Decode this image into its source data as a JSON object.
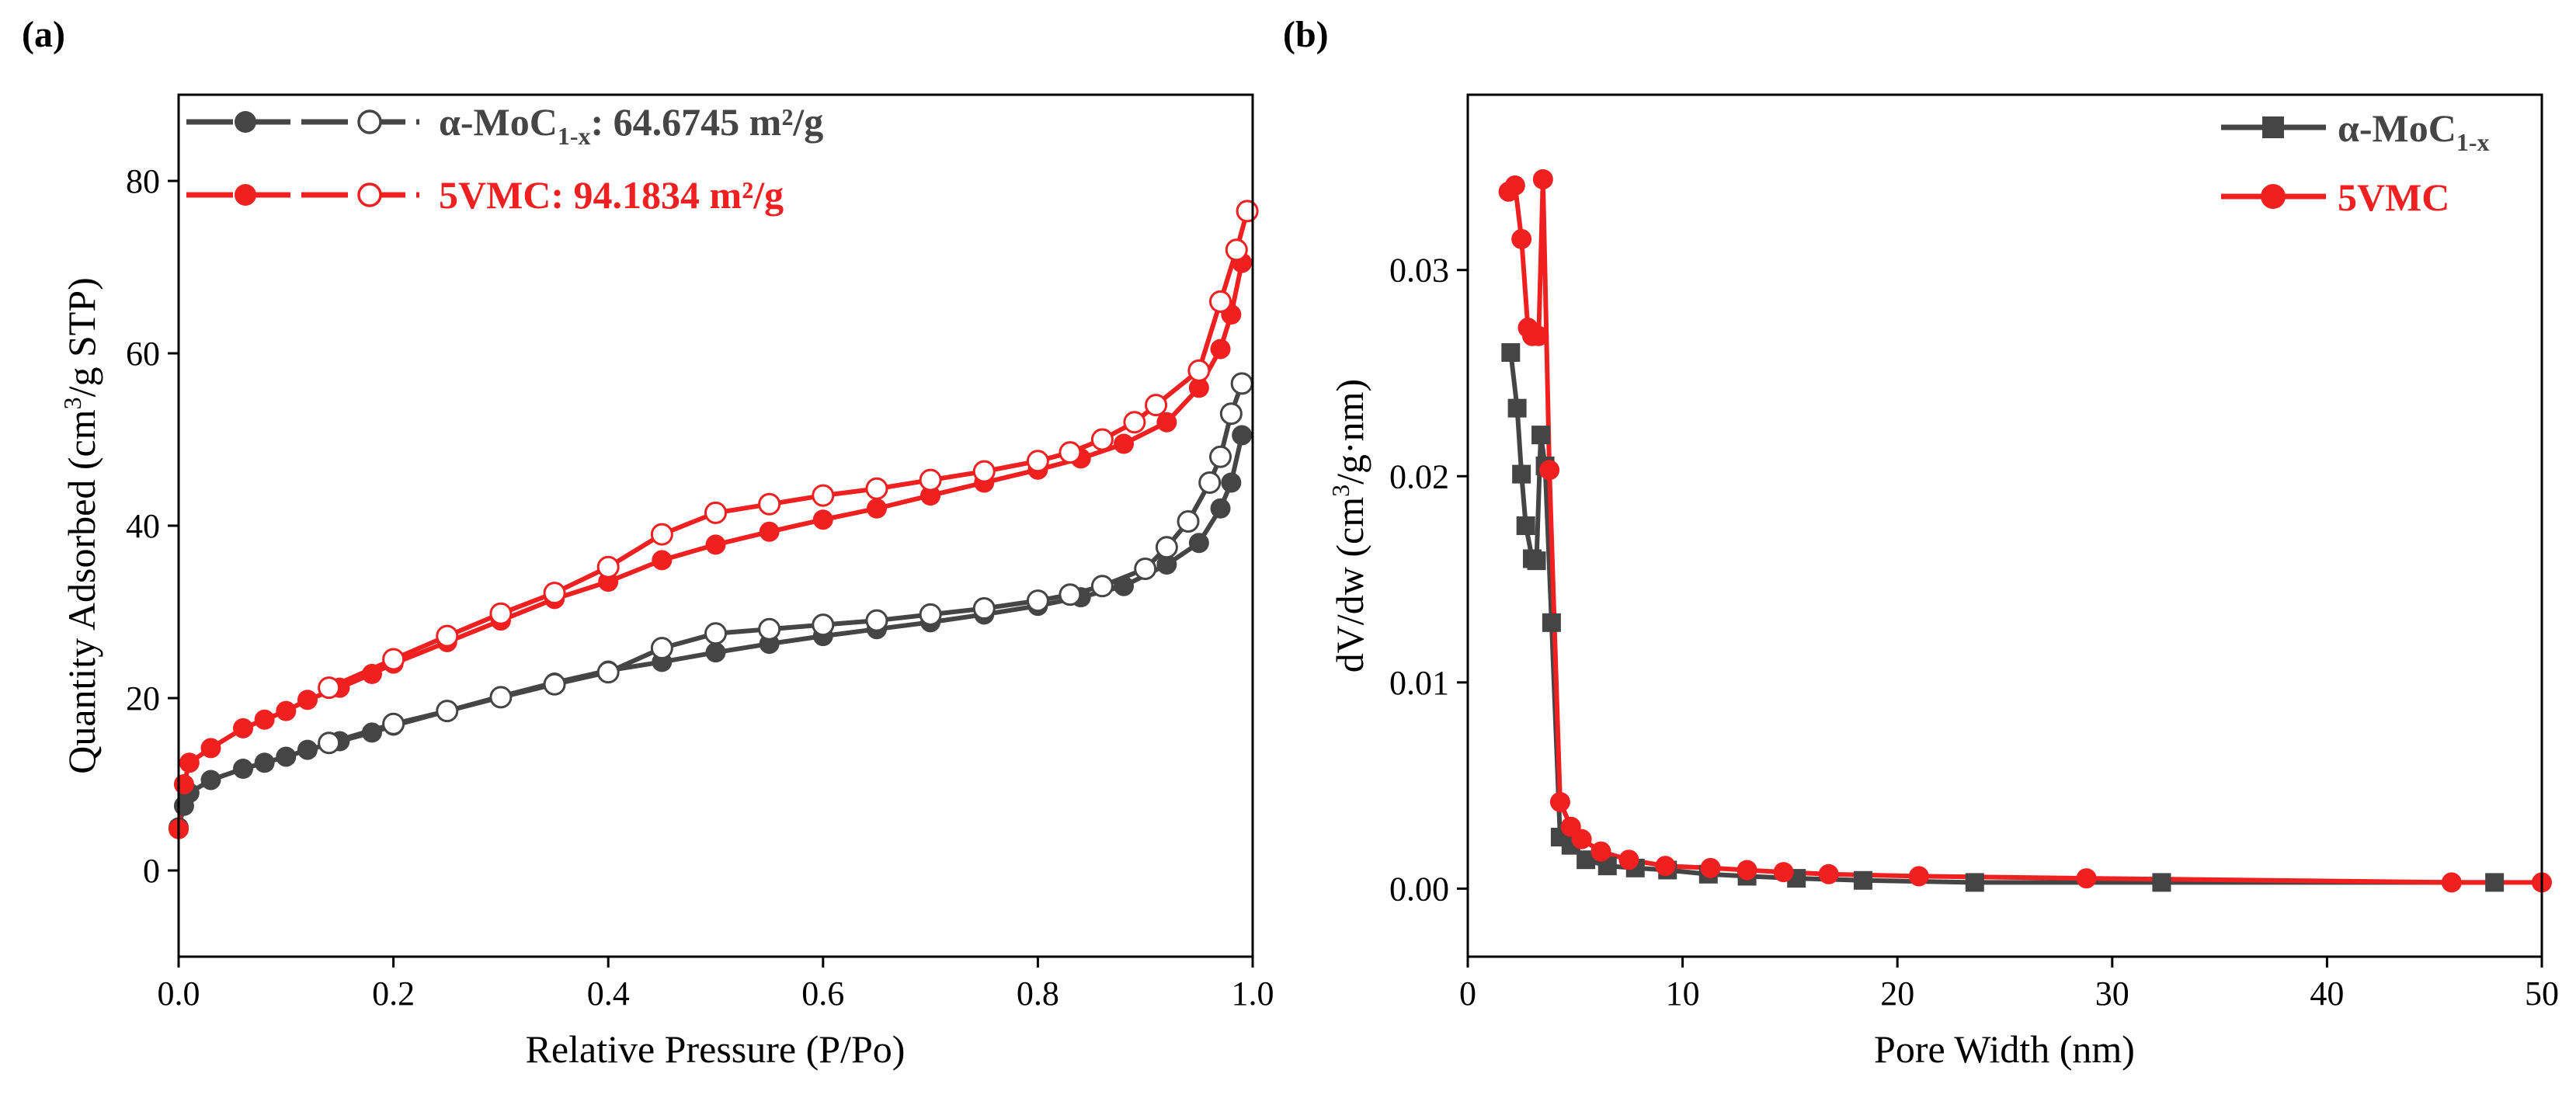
{
  "colors": {
    "black_series": "#454545",
    "red_series": "#f02020",
    "axis": "#000000"
  },
  "chart_data": [
    {
      "panel": "(a)",
      "type": "line",
      "xlabel": "Relative Pressure (P/Po)",
      "ylabel_parts": [
        "Quantity Adsorbed (cm",
        "3",
        "/g STP)"
      ],
      "xlim": [
        0.0,
        1.0
      ],
      "ylim": [
        -10,
        90
      ],
      "xticks": [
        0.0,
        0.2,
        0.4,
        0.6,
        0.8,
        1.0
      ],
      "xtick_labels": [
        "0.0",
        "0.2",
        "0.4",
        "0.6",
        "0.8",
        "1.0"
      ],
      "yticks": [
        0,
        20,
        40,
        60,
        80
      ],
      "ytick_labels": [
        "0",
        "20",
        "40",
        "60",
        "80"
      ],
      "legend": [
        {
          "name_parts": [
            "α-MoC",
            "1-x",
            ": 64.6745 m²/g"
          ],
          "color": "#454545"
        },
        {
          "name_parts": [
            "5VMC: 94.1834 m²/g",
            "",
            ""
          ],
          "color": "#f02020"
        }
      ],
      "series": [
        {
          "name": "α-MoC1-x adsorption",
          "color": "#454545",
          "marker": "filled-circle",
          "x": [
            0.0,
            0.005,
            0.01,
            0.03,
            0.06,
            0.08,
            0.1,
            0.12,
            0.15,
            0.18,
            0.2,
            0.25,
            0.3,
            0.35,
            0.4,
            0.45,
            0.5,
            0.55,
            0.6,
            0.65,
            0.7,
            0.75,
            0.8,
            0.84,
            0.88,
            0.92,
            0.95,
            0.97,
            0.98,
            0.99
          ],
          "y": [
            5.0,
            7.5,
            9.0,
            10.5,
            11.8,
            12.5,
            13.2,
            14.0,
            15.0,
            16.0,
            16.8,
            18.5,
            20.2,
            21.8,
            23.2,
            24.2,
            25.3,
            26.3,
            27.2,
            28.0,
            28.8,
            29.7,
            30.7,
            31.7,
            33.0,
            35.5,
            38.0,
            42.0,
            45.0,
            50.5
          ]
        },
        {
          "name": "α-MoC1-x desorption",
          "color": "#454545",
          "marker": "open-circle",
          "x": [
            0.99,
            0.98,
            0.97,
            0.96,
            0.94,
            0.92,
            0.9,
            0.86,
            0.83,
            0.8,
            0.75,
            0.7,
            0.65,
            0.6,
            0.55,
            0.5,
            0.45,
            0.4,
            0.35,
            0.3,
            0.25,
            0.2,
            0.14
          ],
          "y": [
            56.5,
            53.0,
            48.0,
            45.0,
            40.5,
            37.5,
            35.0,
            33.0,
            32.0,
            31.3,
            30.4,
            29.7,
            29.0,
            28.5,
            28.0,
            27.5,
            25.8,
            23.0,
            21.6,
            20.1,
            18.5,
            17.0,
            14.8
          ]
        },
        {
          "name": "5VMC adsorption",
          "color": "#f02020",
          "marker": "filled-circle",
          "x": [
            0.0,
            0.005,
            0.01,
            0.03,
            0.06,
            0.08,
            0.1,
            0.12,
            0.15,
            0.18,
            0.2,
            0.25,
            0.3,
            0.35,
            0.4,
            0.45,
            0.5,
            0.55,
            0.6,
            0.65,
            0.7,
            0.75,
            0.8,
            0.84,
            0.88,
            0.92,
            0.95,
            0.97,
            0.98,
            0.99
          ],
          "y": [
            4.8,
            10.0,
            12.5,
            14.2,
            16.5,
            17.5,
            18.5,
            19.8,
            21.2,
            22.8,
            24.0,
            26.5,
            29.0,
            31.5,
            33.5,
            36.0,
            37.8,
            39.3,
            40.7,
            42.0,
            43.5,
            45.0,
            46.5,
            47.8,
            49.5,
            52.0,
            56.0,
            60.5,
            64.5,
            70.5
          ]
        },
        {
          "name": "5VMC desorption",
          "color": "#f02020",
          "marker": "open-circle",
          "x": [
            0.995,
            0.985,
            0.97,
            0.95,
            0.91,
            0.89,
            0.86,
            0.83,
            0.8,
            0.75,
            0.7,
            0.65,
            0.6,
            0.55,
            0.5,
            0.45,
            0.4,
            0.35,
            0.3,
            0.25,
            0.2,
            0.14
          ],
          "y": [
            76.5,
            72.0,
            66.0,
            58.0,
            54.0,
            52.0,
            50.0,
            48.5,
            47.5,
            46.3,
            45.3,
            44.3,
            43.5,
            42.5,
            41.5,
            39.0,
            35.2,
            32.2,
            29.8,
            27.2,
            24.5,
            21.2
          ]
        }
      ]
    },
    {
      "panel": "(b)",
      "type": "line",
      "xlabel": "Pore Width (nm)",
      "ylabel_parts": [
        "dV/dw (cm",
        "3",
        "/g·nm)"
      ],
      "xlim": [
        0,
        50
      ],
      "ylim": [
        -0.0033,
        0.0385
      ],
      "xticks": [
        0,
        10,
        20,
        30,
        40,
        50
      ],
      "xtick_labels": [
        "0",
        "10",
        "20",
        "30",
        "40",
        "50"
      ],
      "yticks": [
        0.0,
        0.01,
        0.02,
        0.03
      ],
      "ytick_labels": [
        "0.00",
        "0.01",
        "0.02",
        "0.03"
      ],
      "legend": [
        {
          "name_parts": [
            "α-MoC",
            "1-x",
            ""
          ],
          "color": "#454545"
        },
        {
          "name_parts": [
            "5VMC",
            "",
            ""
          ],
          "color": "#f02020"
        }
      ],
      "series": [
        {
          "name": "α-MoC1-x",
          "color": "#454545",
          "marker": "filled-square",
          "x": [
            2.0,
            2.3,
            2.5,
            2.7,
            3.0,
            3.2,
            3.4,
            3.6,
            3.9,
            4.3,
            4.8,
            5.5,
            6.5,
            7.8,
            9.3,
            11.2,
            13.0,
            15.3,
            18.4,
            23.6,
            32.3,
            47.8
          ],
          "y": [
            0.026,
            0.0233,
            0.0201,
            0.0176,
            0.016,
            0.0159,
            0.022,
            0.0205,
            0.0129,
            0.0025,
            0.0021,
            0.0014,
            0.0011,
            0.001,
            0.0009,
            0.0007,
            0.0006,
            0.0005,
            0.0004,
            0.0003,
            0.0003,
            0.0003
          ]
        },
        {
          "name": "5VMC",
          "color": "#f02020",
          "marker": "filled-circle",
          "x": [
            1.9,
            2.2,
            2.5,
            2.8,
            3.0,
            3.3,
            3.5,
            3.8,
            4.3,
            4.8,
            5.3,
            6.2,
            7.5,
            9.2,
            11.3,
            13.0,
            14.7,
            16.8,
            21.0,
            28.8,
            45.8,
            50.0
          ],
          "y": [
            0.0338,
            0.0341,
            0.0315,
            0.0272,
            0.0268,
            0.0268,
            0.0344,
            0.0203,
            0.0042,
            0.003,
            0.0024,
            0.0018,
            0.0014,
            0.0011,
            0.001,
            0.0009,
            0.0008,
            0.0007,
            0.0006,
            0.0005,
            0.0003,
            0.0003
          ]
        }
      ]
    }
  ]
}
